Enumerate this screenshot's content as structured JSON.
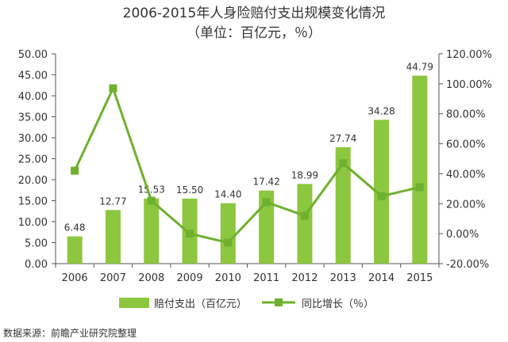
{
  "chart_data": {
    "type": "bar",
    "title": "2006-2015年人身险赔付支出规模变化情况",
    "subtitle": "（单位：百亿元，％）",
    "categories": [
      "2006",
      "2007",
      "2008",
      "2009",
      "2010",
      "2011",
      "2012",
      "2013",
      "2014",
      "2015"
    ],
    "series": [
      {
        "name": "赔付支出（百亿元）",
        "type": "bar",
        "axis": "left",
        "values": [
          6.48,
          12.77,
          15.53,
          15.5,
          14.4,
          17.42,
          18.99,
          27.74,
          34.28,
          44.79
        ],
        "labels": [
          "6.48",
          "12.77",
          "15.53",
          "15.50",
          "14.40",
          "17.42",
          "18.99",
          "27.74",
          "34.28",
          "44.79"
        ]
      },
      {
        "name": "同比增长（％）",
        "type": "line",
        "axis": "right",
        "values": [
          42,
          97,
          22,
          0,
          -6,
          21,
          12,
          47,
          25,
          31
        ]
      }
    ],
    "y_left": {
      "min": 0,
      "max": 50,
      "step": 5,
      "tick_labels": [
        "0.00",
        "5.00",
        "10.00",
        "15.00",
        "20.00",
        "25.00",
        "30.00",
        "35.00",
        "40.00",
        "45.00",
        "50.00"
      ]
    },
    "y_right": {
      "min": -20,
      "max": 120,
      "step": 20,
      "tick_labels": [
        "-20.00%",
        "0.00%",
        "20.00%",
        "40.00%",
        "60.00%",
        "80.00%",
        "100.00%",
        "120.00%"
      ]
    },
    "grid": false,
    "legend_position": "bottom",
    "colors": {
      "bar": "#8dc63f",
      "line": "#6fb02e",
      "axis": "#555555"
    }
  },
  "source": "数据来源：前瞻产业研究院整理"
}
